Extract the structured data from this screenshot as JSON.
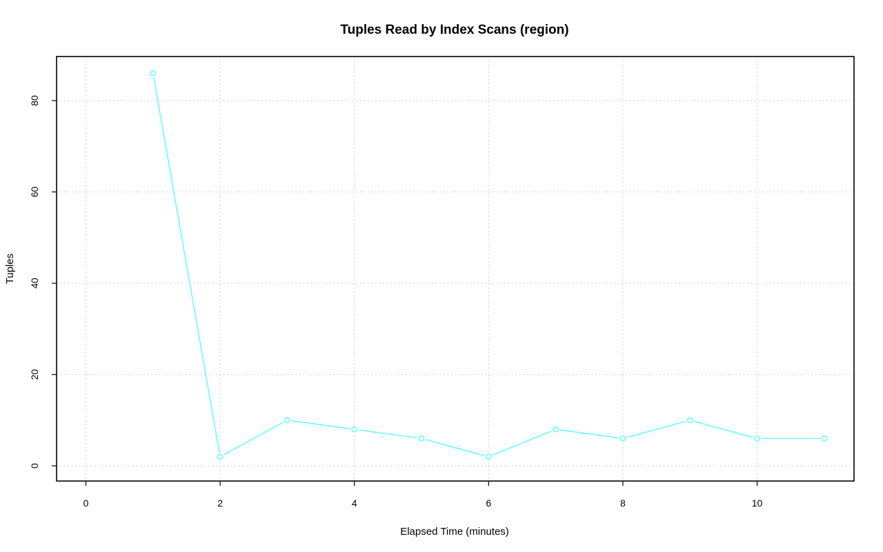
{
  "chart_data": {
    "type": "line",
    "title": "Tuples Read by Index Scans (region)",
    "xlabel": "Elapsed Time (minutes)",
    "ylabel": "Tuples",
    "xlim": [
      0,
      11
    ],
    "ylim": [
      0,
      86
    ],
    "x_ticks": [
      0,
      2,
      4,
      6,
      8,
      10
    ],
    "y_ticks": [
      0,
      20,
      40,
      60,
      80
    ],
    "grid": true,
    "series": [
      {
        "color": "#66ffff",
        "marker": "open-circle",
        "x": [
          1,
          2,
          3,
          4,
          5,
          6,
          7,
          8,
          9,
          10,
          11
        ],
        "y": [
          86,
          2,
          10,
          8,
          6,
          2,
          8,
          6,
          10,
          6,
          6
        ]
      }
    ]
  }
}
